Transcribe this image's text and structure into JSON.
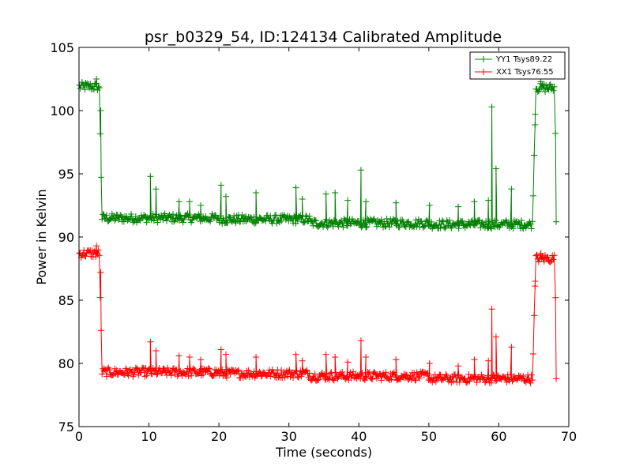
{
  "chart_data": {
    "type": "line",
    "title": "psr_b0329_54, ID:124134 Calibrated Amplitude",
    "xlabel": "Time (seconds)",
    "ylabel": "Power in Kelvin",
    "xlim": [
      0,
      70
    ],
    "ylim": [
      75,
      105
    ],
    "x_ticks": [
      "0",
      "10",
      "20",
      "30",
      "40",
      "50",
      "60",
      "70"
    ],
    "y_ticks": [
      "75",
      "80",
      "85",
      "90",
      "95",
      "100",
      "105"
    ],
    "grid": false,
    "legend_position": "top-right",
    "marker": "plus",
    "series": [
      {
        "name": "YY1 Tsys89.22",
        "color": "#008000",
        "base_levels": [
          {
            "x_from": 0,
            "x_to": 2.9,
            "value": 101.9
          },
          {
            "x_from": 3.3,
            "x_to": 20,
            "value": 91.5
          },
          {
            "x_from": 20,
            "x_to": 33,
            "value": 91.4
          },
          {
            "x_from": 33,
            "x_to": 50,
            "value": 91.1
          },
          {
            "x_from": 50,
            "x_to": 64.8,
            "value": 91.0
          },
          {
            "x_from": 65.3,
            "x_to": 68,
            "value": 101.8
          }
        ],
        "spikes": [
          {
            "x": 2.5,
            "y": 102.5
          },
          {
            "x": 3.1,
            "y": 100.0
          },
          {
            "x": 10.2,
            "y": 94.8
          },
          {
            "x": 11.0,
            "y": 93.8
          },
          {
            "x": 14.3,
            "y": 92.8
          },
          {
            "x": 15.8,
            "y": 92.8
          },
          {
            "x": 17.4,
            "y": 92.5
          },
          {
            "x": 20.3,
            "y": 94.1
          },
          {
            "x": 21.0,
            "y": 93.2
          },
          {
            "x": 25.3,
            "y": 93.5
          },
          {
            "x": 31.0,
            "y": 93.9
          },
          {
            "x": 31.9,
            "y": 93.0
          },
          {
            "x": 35.3,
            "y": 93.4
          },
          {
            "x": 36.6,
            "y": 93.5
          },
          {
            "x": 38.4,
            "y": 92.9
          },
          {
            "x": 40.3,
            "y": 95.3
          },
          {
            "x": 41.0,
            "y": 92.8
          },
          {
            "x": 45.3,
            "y": 92.7
          },
          {
            "x": 50.1,
            "y": 92.5
          },
          {
            "x": 54.2,
            "y": 92.4
          },
          {
            "x": 56.5,
            "y": 92.8
          },
          {
            "x": 58.5,
            "y": 92.9
          },
          {
            "x": 59.0,
            "y": 100.3
          },
          {
            "x": 59.6,
            "y": 95.4
          },
          {
            "x": 61.8,
            "y": 93.8
          },
          {
            "x": 65.2,
            "y": 99.7
          },
          {
            "x": 66.0,
            "y": 102.3
          },
          {
            "x": 68.1,
            "y": 98.2
          },
          {
            "x": 68.2,
            "y": 91.2
          }
        ]
      },
      {
        "name": "XX1 Tsys76.55",
        "color": "#ff0000",
        "base_levels": [
          {
            "x_from": 0,
            "x_to": 2.9,
            "value": 88.7
          },
          {
            "x_from": 3.3,
            "x_to": 20,
            "value": 79.3
          },
          {
            "x_from": 20,
            "x_to": 33,
            "value": 79.2
          },
          {
            "x_from": 33,
            "x_to": 50,
            "value": 79.0
          },
          {
            "x_from": 50,
            "x_to": 64.8,
            "value": 78.8
          },
          {
            "x_from": 65.3,
            "x_to": 68,
            "value": 88.3
          }
        ],
        "spikes": [
          {
            "x": 2.5,
            "y": 89.3
          },
          {
            "x": 3.1,
            "y": 87.2
          },
          {
            "x": 10.2,
            "y": 81.7
          },
          {
            "x": 11.0,
            "y": 81.0
          },
          {
            "x": 14.3,
            "y": 80.6
          },
          {
            "x": 15.8,
            "y": 80.5
          },
          {
            "x": 17.4,
            "y": 80.3
          },
          {
            "x": 20.3,
            "y": 81.1
          },
          {
            "x": 21.0,
            "y": 80.7
          },
          {
            "x": 25.3,
            "y": 80.5
          },
          {
            "x": 31.0,
            "y": 80.7
          },
          {
            "x": 31.9,
            "y": 80.2
          },
          {
            "x": 35.3,
            "y": 80.7
          },
          {
            "x": 36.6,
            "y": 80.5
          },
          {
            "x": 38.4,
            "y": 80.1
          },
          {
            "x": 40.3,
            "y": 81.8
          },
          {
            "x": 41.0,
            "y": 80.5
          },
          {
            "x": 45.3,
            "y": 80.3
          },
          {
            "x": 50.1,
            "y": 80.0
          },
          {
            "x": 54.2,
            "y": 79.8
          },
          {
            "x": 56.5,
            "y": 80.3
          },
          {
            "x": 58.5,
            "y": 80.2
          },
          {
            "x": 59.0,
            "y": 84.3
          },
          {
            "x": 59.6,
            "y": 82.1
          },
          {
            "x": 61.8,
            "y": 81.3
          },
          {
            "x": 65.2,
            "y": 86.5
          },
          {
            "x": 66.0,
            "y": 88.7
          },
          {
            "x": 68.1,
            "y": 85.2
          },
          {
            "x": 68.2,
            "y": 78.8
          }
        ]
      }
    ]
  }
}
